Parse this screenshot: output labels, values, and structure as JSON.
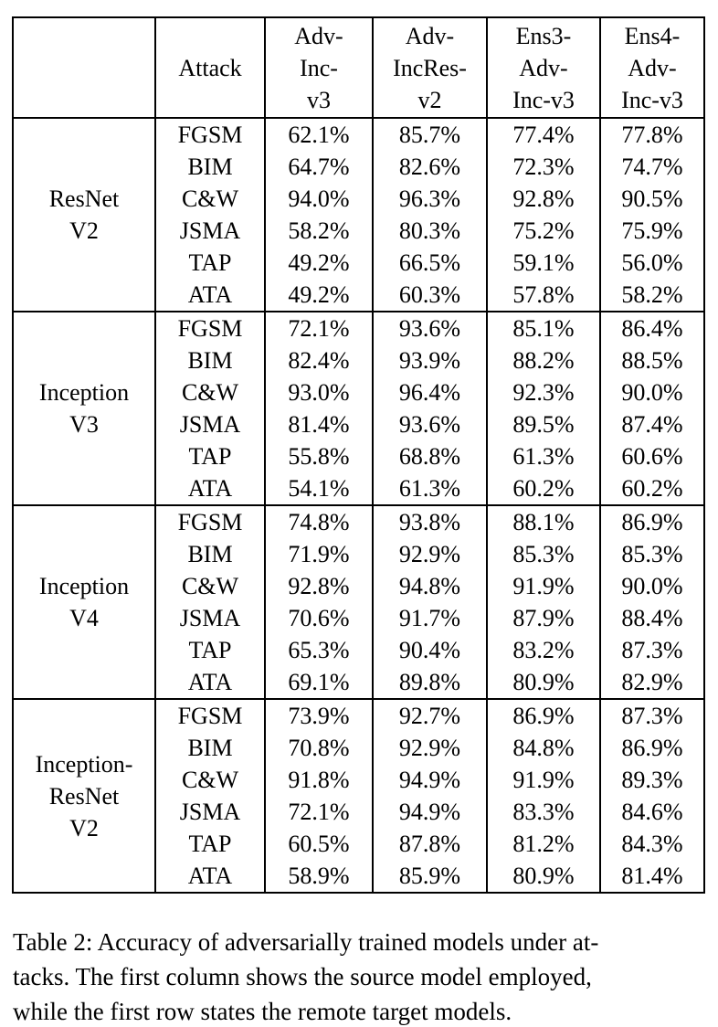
{
  "table": {
    "header": {
      "corner": "",
      "attack": "Attack",
      "targets": [
        "Adv-\nInc-\nv3",
        "Adv-\nIncRes-\nv2",
        "Ens3-\nAdv-\nInc-v3",
        "Ens4-\nAdv-\nInc-v3"
      ]
    },
    "groups": [
      {
        "model": "ResNet\nV2",
        "rows": [
          {
            "attack": "FGSM",
            "values": [
              "62.1%",
              "85.7%",
              "77.4%",
              "77.8%"
            ],
            "bold": [
              false,
              false,
              false,
              false
            ]
          },
          {
            "attack": "BIM",
            "values": [
              "64.7%",
              "82.6%",
              "72.3%",
              "74.7%"
            ],
            "bold": [
              false,
              false,
              false,
              false
            ]
          },
          {
            "attack": "C&W",
            "values": [
              "94.0%",
              "96.3%",
              "92.8%",
              "90.5%"
            ],
            "bold": [
              false,
              false,
              false,
              false
            ]
          },
          {
            "attack": "JSMA",
            "values": [
              "58.2%",
              "80.3%",
              "75.2%",
              "75.9%"
            ],
            "bold": [
              false,
              false,
              false,
              false
            ]
          },
          {
            "attack": "TAP",
            "values": [
              "49.2%",
              "66.5%",
              "59.1%",
              "56.0%"
            ],
            "bold": [
              true,
              false,
              false,
              true
            ]
          },
          {
            "attack": "ATA",
            "values": [
              "49.2%",
              "60.3%",
              "57.8%",
              "58.2%"
            ],
            "bold": [
              true,
              true,
              true,
              false
            ]
          }
        ]
      },
      {
        "model": "Inception\nV3",
        "rows": [
          {
            "attack": "FGSM",
            "values": [
              "72.1%",
              "93.6%",
              "85.1%",
              "86.4%"
            ],
            "bold": [
              false,
              false,
              false,
              false
            ]
          },
          {
            "attack": "BIM",
            "values": [
              "82.4%",
              "93.9%",
              "88.2%",
              "88.5%"
            ],
            "bold": [
              false,
              false,
              false,
              false
            ]
          },
          {
            "attack": "C&W",
            "values": [
              "93.0%",
              "96.4%",
              "92.3%",
              "90.0%"
            ],
            "bold": [
              false,
              false,
              false,
              false
            ]
          },
          {
            "attack": "JSMA",
            "values": [
              "81.4%",
              "93.6%",
              "89.5%",
              "87.4%"
            ],
            "bold": [
              false,
              false,
              false,
              false
            ]
          },
          {
            "attack": "TAP",
            "values": [
              "55.8%",
              "68.8%",
              "61.3%",
              "60.6%"
            ],
            "bold": [
              false,
              false,
              false,
              false
            ]
          },
          {
            "attack": "ATA",
            "values": [
              "54.1%",
              "61.3%",
              "60.2%",
              "60.2%"
            ],
            "bold": [
              true,
              true,
              true,
              true
            ]
          }
        ]
      },
      {
        "model": "Inception\nV4",
        "rows": [
          {
            "attack": "FGSM",
            "values": [
              "74.8%",
              "93.8%",
              "88.1%",
              "86.9%"
            ],
            "bold": [
              false,
              false,
              false,
              false
            ]
          },
          {
            "attack": "BIM",
            "values": [
              "71.9%",
              "92.9%",
              "85.3%",
              "85.3%"
            ],
            "bold": [
              false,
              false,
              false,
              false
            ]
          },
          {
            "attack": "C&W",
            "values": [
              "92.8%",
              "94.8%",
              "91.9%",
              "90.0%"
            ],
            "bold": [
              false,
              false,
              false,
              false
            ]
          },
          {
            "attack": "JSMA",
            "values": [
              "70.6%",
              "91.7%",
              "87.9%",
              "88.4%"
            ],
            "bold": [
              false,
              false,
              false,
              false
            ]
          },
          {
            "attack": "TAP",
            "values": [
              "65.3%",
              "90.4%",
              "83.2%",
              "87.3%"
            ],
            "bold": [
              true,
              false,
              false,
              false
            ]
          },
          {
            "attack": "ATA",
            "values": [
              "69.1%",
              "89.8%",
              "80.9%",
              "82.9%"
            ],
            "bold": [
              false,
              true,
              true,
              true
            ]
          }
        ]
      },
      {
        "model": "Inception-\nResNet\nV2",
        "rows": [
          {
            "attack": "FGSM",
            "values": [
              "73.9%",
              "92.7%",
              "86.9%",
              "87.3%"
            ],
            "bold": [
              false,
              false,
              false,
              false
            ]
          },
          {
            "attack": "BIM",
            "values": [
              "70.8%",
              "92.9%",
              "84.8%",
              "86.9%"
            ],
            "bold": [
              false,
              false,
              false,
              false
            ]
          },
          {
            "attack": "C&W",
            "values": [
              "91.8%",
              "94.9%",
              "91.9%",
              "89.3%"
            ],
            "bold": [
              false,
              false,
              false,
              false
            ]
          },
          {
            "attack": "JSMA",
            "values": [
              "72.1%",
              "94.9%",
              "83.3%",
              "84.6%"
            ],
            "bold": [
              false,
              false,
              false,
              false
            ]
          },
          {
            "attack": "TAP",
            "values": [
              "60.5%",
              "87.8%",
              "81.2%",
              "84.3%"
            ],
            "bold": [
              false,
              false,
              false,
              false
            ]
          },
          {
            "attack": "ATA",
            "values": [
              "58.9%",
              "85.9%",
              "80.9%",
              "81.4%"
            ],
            "bold": [
              true,
              true,
              true,
              true
            ]
          }
        ]
      }
    ]
  },
  "caption": {
    "lines": [
      "Table 2: Accuracy of adversarially trained models under at-",
      "tacks. The first column shows the source model employed,",
      "while the first row states the remote target models."
    ]
  }
}
